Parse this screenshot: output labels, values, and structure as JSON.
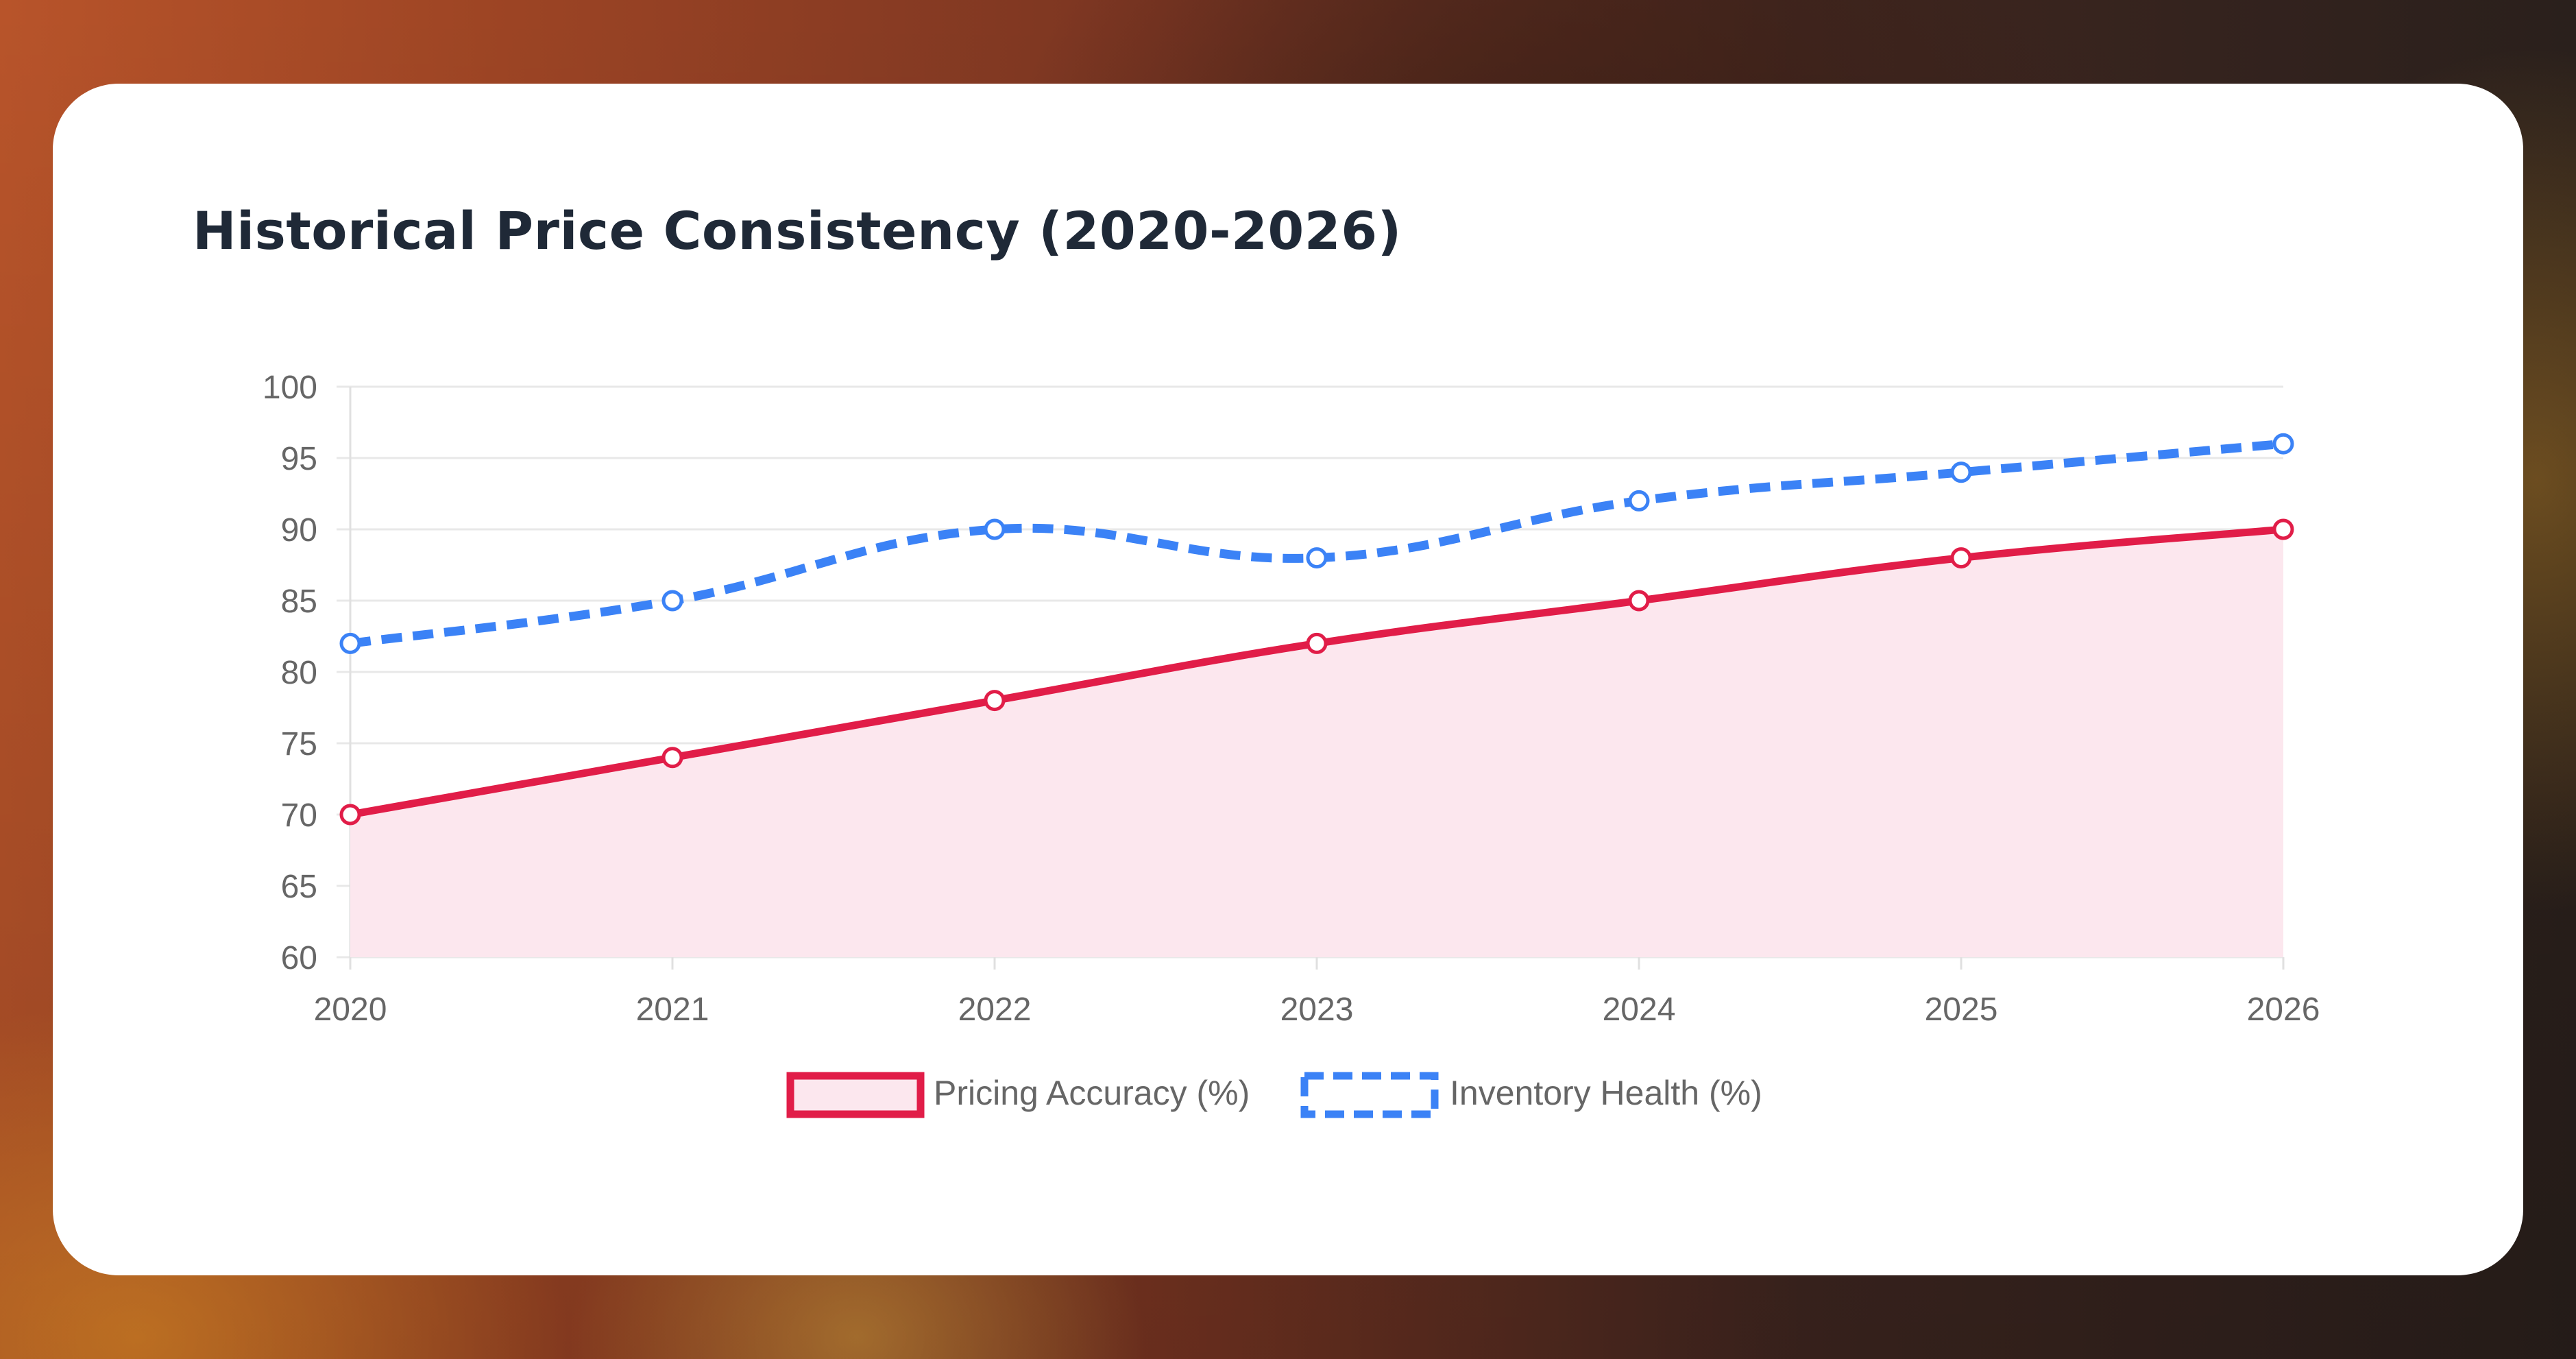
{
  "chart_data": {
    "type": "line",
    "title": "Historical Price Consistency (2020-2026)",
    "categories": [
      "2020",
      "2021",
      "2022",
      "2023",
      "2024",
      "2025",
      "2026"
    ],
    "y_ticks": [
      "60",
      "65",
      "70",
      "75",
      "80",
      "85",
      "90",
      "95",
      "100"
    ],
    "ylim": [
      60,
      100
    ],
    "grid": true,
    "legend_position": "bottom",
    "series": [
      {
        "name": "Pricing Accuracy (%)",
        "values": [
          70,
          74,
          78,
          82,
          85,
          88,
          90
        ],
        "color": "#e11d48",
        "fill": "#fce7ee",
        "style": "solid-filled"
      },
      {
        "name": "Inventory Health (%)",
        "values": [
          82,
          85,
          90,
          88,
          92,
          94,
          96
        ],
        "color": "#3b82f6",
        "style": "dashed"
      }
    ]
  }
}
